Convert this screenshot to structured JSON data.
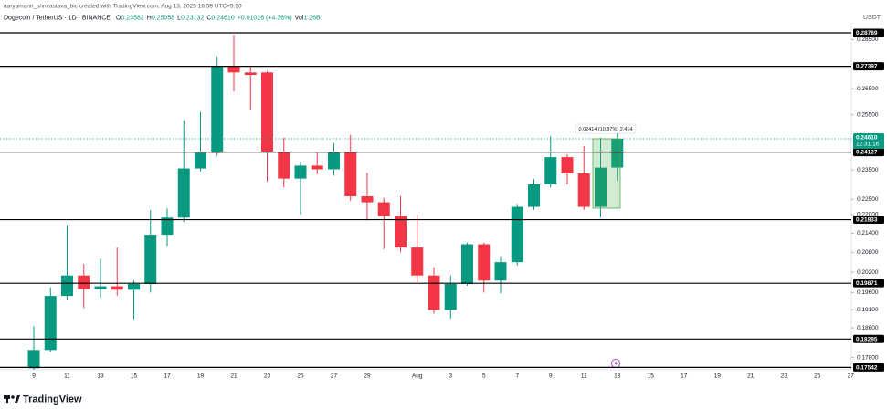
{
  "header": {
    "attribution": "aaryamann_shrivastava_bic created with TradingView.com, Aug 13, 2025 16:58 UTC+5:30",
    "symbol": "Dogecoin / TetherUS · 1D · BINANCE",
    "ohlc": [
      {
        "key": "O",
        "value": "0.23582"
      },
      {
        "key": "H",
        "value": "0.25058"
      },
      {
        "key": "L",
        "value": "0.23132"
      },
      {
        "key": "C",
        "value": "0.24610"
      }
    ],
    "change": "+0.01028 (+4.36%)",
    "volume": {
      "key": "Vol",
      "value": "1.26B"
    },
    "currency": "USDT"
  },
  "chart_data": {
    "type": "candlestick",
    "log_scale": true,
    "grid": false,
    "up_color": "#089981",
    "down_color": "#f23645",
    "level_color": "#000000",
    "categories": [
      "9",
      null,
      "11",
      null,
      "13",
      null,
      "15",
      null,
      "17",
      null,
      "19",
      null,
      "21",
      null,
      "23",
      null,
      "25",
      null,
      "27",
      null,
      "29",
      null,
      null,
      "Aug",
      null,
      "3",
      null,
      "5",
      null,
      "7",
      null,
      "9",
      null,
      "11",
      null,
      "13",
      null,
      "15",
      null,
      "17",
      null,
      "19",
      null,
      "21",
      null,
      "23",
      null,
      "25",
      null,
      "27"
    ],
    "open": [
      0.1752,
      0.18,
      0.195,
      0.201,
      0.197,
      0.1978,
      0.1968,
      0.1985,
      0.2135,
      0.219,
      0.2355,
      0.241,
      0.274,
      0.2715,
      0.2715,
      0.2413,
      0.232,
      0.2365,
      0.2352,
      0.2413,
      0.226,
      0.224,
      0.2195,
      0.2095,
      0.201,
      0.191,
      0.1985,
      0.2105,
      0.1995,
      0.205,
      0.2225,
      0.23,
      0.2395,
      0.2338,
      0.2225,
      0.23582,
      null,
      null,
      null,
      null,
      null,
      null,
      null,
      null,
      null,
      null,
      null,
      null,
      null,
      null
    ],
    "high": [
      0.1865,
      0.1975,
      0.2165,
      0.2045,
      0.206,
      0.2095,
      0.1995,
      0.2215,
      0.222,
      0.253,
      0.256,
      0.278,
      0.287,
      0.274,
      0.272,
      0.2465,
      0.238,
      0.2413,
      0.2445,
      0.2475,
      0.234,
      0.2255,
      0.226,
      0.22,
      0.2035,
      0.201,
      0.211,
      0.211,
      0.2068,
      0.2235,
      0.2318,
      0.247,
      0.2405,
      0.2435,
      0.2465,
      0.25058,
      null,
      null,
      null,
      null,
      null,
      null,
      null,
      null,
      null,
      null,
      null,
      null,
      null,
      null
    ],
    "low": [
      0.174,
      0.1795,
      0.194,
      0.1915,
      0.1945,
      0.195,
      0.1885,
      0.196,
      0.21,
      0.2175,
      0.2345,
      0.24,
      0.264,
      0.257,
      0.231,
      0.229,
      0.22,
      0.2335,
      0.233,
      0.2245,
      0.218,
      0.209,
      0.208,
      0.199,
      0.19,
      0.1885,
      0.198,
      0.196,
      0.1958,
      0.204,
      0.2215,
      0.229,
      0.23,
      0.2215,
      0.219,
      0.23132,
      null,
      null,
      null,
      null,
      null,
      null,
      null,
      null,
      null,
      null,
      null,
      null,
      null,
      null
    ],
    "close": [
      0.18,
      0.195,
      0.201,
      0.197,
      0.1978,
      0.1968,
      0.1985,
      0.2135,
      0.219,
      0.2355,
      0.241,
      0.274,
      0.2715,
      0.2705,
      0.2413,
      0.232,
      0.2365,
      0.2352,
      0.2413,
      0.226,
      0.224,
      0.2195,
      0.2095,
      0.201,
      0.191,
      0.1985,
      0.2105,
      0.1995,
      0.205,
      0.2225,
      0.23,
      0.2395,
      0.2338,
      0.2225,
      0.2358,
      0.2461,
      null,
      null,
      null,
      null,
      null,
      null,
      null,
      null,
      null,
      null,
      null,
      null,
      null,
      null
    ],
    "ylim": [
      0.1748,
      0.2922
    ],
    "yticks": [
      {
        "value": 0.285,
        "label": "0.28500"
      },
      {
        "value": 0.265,
        "label": "0.26500"
      },
      {
        "value": 0.255,
        "label": "0.25500"
      },
      {
        "value": 0.235,
        "label": "0.23500"
      },
      {
        "value": 0.225,
        "label": "0.22500"
      },
      {
        "value": 0.22,
        "label": "0.22000"
      },
      {
        "value": 0.214,
        "label": "0.21400"
      },
      {
        "value": 0.208,
        "label": "0.20800"
      },
      {
        "value": 0.202,
        "label": "0.20200"
      },
      {
        "value": 0.196,
        "label": "0.19600"
      },
      {
        "value": 0.191,
        "label": "0.19100"
      },
      {
        "value": 0.186,
        "label": "0.18600"
      },
      {
        "value": 0.178,
        "label": "0.17800"
      }
    ],
    "levels": [
      0.28789,
      0.27397,
      0.24127,
      0.21833,
      0.19871,
      0.18295,
      0.17542
    ],
    "last_price": {
      "value": 0.2461,
      "label": "0.24610"
    },
    "countdown": "12:31:16",
    "measure": "0.02414 (10.87%) 2,414"
  },
  "footer": {
    "logo": "TradingView"
  }
}
